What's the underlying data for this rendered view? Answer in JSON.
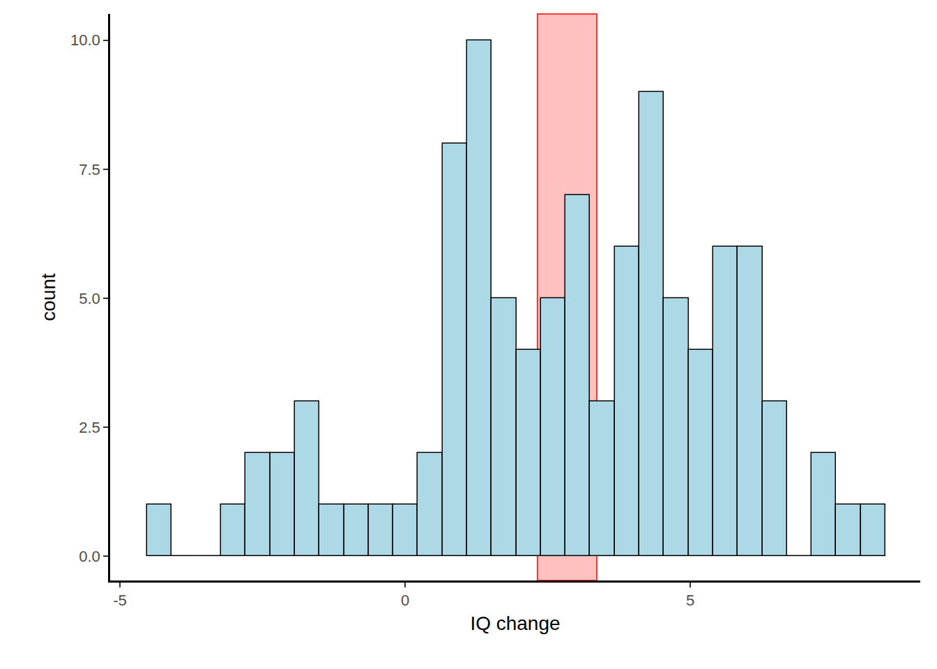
{
  "chart_data": {
    "type": "histogram",
    "x_label": "IQ change",
    "y_label": "count",
    "bins": [
      -4.52,
      -4.089,
      -3.657,
      -3.226,
      -2.795,
      -2.364,
      -1.932,
      -1.501,
      -1.07,
      -0.638,
      -0.207,
      0.224,
      0.656,
      1.087,
      1.518,
      1.95,
      2.381,
      2.812,
      3.243,
      3.675,
      4.106,
      4.537,
      4.969,
      5.4,
      5.831,
      6.263,
      6.694,
      7.125,
      7.556,
      7.988,
      8.419
    ],
    "counts": [
      1,
      0,
      0,
      1,
      2,
      2,
      3,
      1,
      1,
      1,
      1,
      2,
      8,
      10,
      5,
      4,
      5,
      7,
      3,
      6,
      9,
      5,
      4,
      6,
      6,
      3,
      0,
      2,
      1,
      1
    ],
    "color": "#ADD8E6",
    "shaded_interval": [
      2.32,
      3.36
    ],
    "xlim": [
      -5.17,
      9.03
    ],
    "xticks": [
      -5,
      0,
      5
    ],
    "ylim": [
      -0.47,
      10.51
    ],
    "yticks": [
      {
        "value": 0,
        "label": "0.0"
      },
      {
        "value": 2.5,
        "label": "2.5"
      },
      {
        "value": 5,
        "label": "5.0"
      },
      {
        "value": 7.5,
        "label": "7.5"
      },
      {
        "value": 10,
        "label": "10.0"
      }
    ],
    "grid": false
  }
}
